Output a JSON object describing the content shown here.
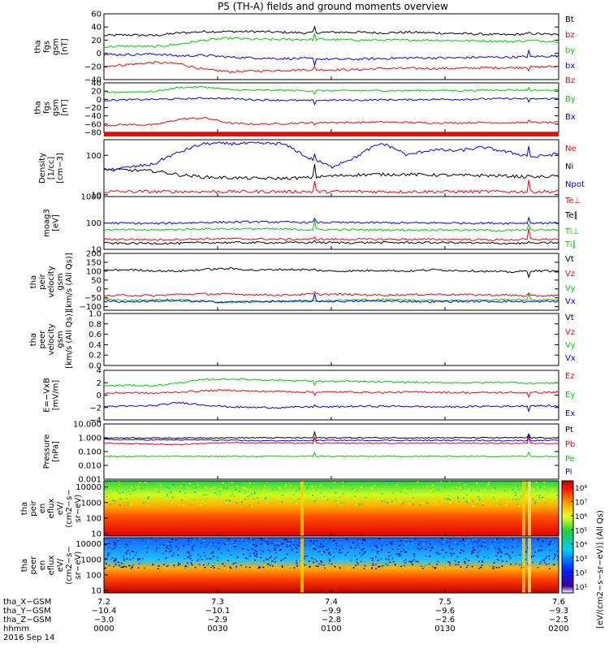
{
  "title": "P5 (TH-A) fields and ground moments overview",
  "chart_data": [
    {
      "type": "line",
      "ylabel": [
        "tha",
        "fgs",
        "gsm",
        "[nT]"
      ],
      "ylim": [
        -40,
        60
      ],
      "yticks": [
        "60",
        "40",
        "20",
        "0",
        "−20",
        "−40"
      ],
      "legend": [
        {
          "name": "Bt",
          "color": "#000000"
        },
        {
          "name": "bz",
          "color": "#ff0000"
        },
        {
          "name": "by",
          "color": "#00cc00"
        },
        {
          "name": "bx",
          "color": "#0000ff"
        }
      ],
      "series": [
        {
          "name": "Bt",
          "color": "#000000",
          "values": [
            27,
            28,
            27,
            31,
            33,
            33,
            33,
            32,
            31,
            32,
            32,
            31,
            32,
            31,
            30,
            29,
            28,
            30,
            28
          ]
        },
        {
          "name": "bz",
          "color": "#ff0000",
          "values": [
            -20,
            -17,
            -14,
            -16,
            -25,
            -28,
            -27,
            -26,
            -25,
            -25,
            -25,
            -23,
            -23,
            -23,
            -23,
            -22,
            -22,
            -21,
            -20
          ]
        },
        {
          "name": "by",
          "color": "#00cc00",
          "values": [
            10,
            11,
            10,
            14,
            20,
            23,
            21,
            21,
            21,
            21,
            20,
            20,
            20,
            20,
            19,
            19,
            18,
            19,
            18
          ]
        },
        {
          "name": "bx",
          "color": "#0000ff",
          "values": [
            -2,
            -2,
            -1,
            -4,
            -3,
            -6,
            -7,
            -8,
            -8,
            -9,
            -9,
            -8,
            -7,
            -7,
            -7,
            -6,
            -6,
            -5,
            -4
          ]
        }
      ]
    },
    {
      "type": "line",
      "ylabel": [
        "tha",
        "fgs",
        "gsm",
        "[nT]"
      ],
      "ylim": [
        -80,
        40
      ],
      "yticks": [
        "40",
        "20",
        "0",
        "−20",
        "−40",
        "−60",
        "−80"
      ],
      "legend": [
        {
          "name": "Bz",
          "color": "#ff0000"
        },
        {
          "name": "By",
          "color": "#00cc00"
        },
        {
          "name": "Bx",
          "color": "#0000ff"
        }
      ],
      "series": [
        {
          "name": "Bz",
          "color": "#ff0000",
          "values": [
            -63,
            -61,
            -62,
            -48,
            -45,
            -58,
            -60,
            -59,
            -57,
            -56,
            -56,
            -55,
            -56,
            -57,
            -57,
            -56,
            -57,
            -56,
            -56
          ]
        },
        {
          "name": "By",
          "color": "#00cc00",
          "values": [
            17,
            18,
            19,
            29,
            30,
            23,
            22,
            22,
            21,
            21,
            21,
            21,
            21,
            22,
            21,
            22,
            23,
            22,
            22
          ]
        },
        {
          "name": "Bx",
          "color": "#0000ff",
          "values": [
            -2,
            -1,
            0,
            1,
            3,
            2,
            -1,
            -2,
            -3,
            -2,
            -2,
            -1,
            -1,
            0,
            0,
            1,
            2,
            1,
            2
          ]
        }
      ]
    },
    {
      "type": "line",
      "ylog": true,
      "ylabel": [
        "Density",
        "[1/cc]",
        "[cm−3]"
      ],
      "ylim": [
        9,
        250
      ],
      "yticks": [
        "100",
        "10"
      ],
      "legend": [
        {
          "name": "Ne",
          "color": "#ff0000"
        },
        {
          "name": "Ni",
          "color": "#000000"
        },
        {
          "name": "Npot",
          "color": "#0000ff"
        }
      ],
      "series": [
        {
          "name": "Ne",
          "color": "#ff0000",
          "values": [
            12,
            12,
            12,
            12,
            12,
            12,
            12,
            12,
            12,
            12,
            12,
            12,
            12,
            12,
            12,
            12,
            12,
            12,
            12
          ]
        },
        {
          "name": "Ni",
          "color": "#000000",
          "values": [
            45,
            42,
            40,
            32,
            28,
            27,
            26,
            26,
            27,
            30,
            32,
            33,
            33,
            32,
            31,
            31,
            30,
            28,
            30
          ]
        },
        {
          "name": "Npot",
          "color": "#0000ff",
          "values": [
            40,
            50,
            60,
            120,
            200,
            200,
            200,
            200,
            90,
            50,
            90,
            200,
            100,
            140,
            130,
            160,
            120,
            90,
            110
          ]
        }
      ]
    },
    {
      "type": "line",
      "ylog": true,
      "ylabel": [
        "moag3",
        "[eV]"
      ],
      "ylim": [
        10,
        1000
      ],
      "yticks": [
        "1000",
        "100",
        "10"
      ],
      "legend": [
        {
          "name": "Te⊥",
          "color": "#ff0000"
        },
        {
          "name": "Te∥",
          "color": "#000000"
        },
        {
          "name": "Ti⊥",
          "color": "#00cc00"
        },
        {
          "name": "Ti∥",
          "color": "#00cc00"
        }
      ],
      "series": [
        {
          "name": "Ti(upper)",
          "color": "#0000ff",
          "values": [
            100,
            98,
            95,
            100,
            105,
            108,
            110,
            108,
            105,
            104,
            103,
            102,
            100,
            101,
            100,
            99,
            98,
            100,
            100
          ]
        },
        {
          "name": "Ti⊥",
          "color": "#00cc00",
          "values": [
            55,
            55,
            54,
            57,
            60,
            60,
            60,
            58,
            56,
            56,
            55,
            55,
            54,
            55,
            54,
            53,
            52,
            54,
            55
          ]
        },
        {
          "name": "Te⊥",
          "color": "#ff0000",
          "values": [
            24,
            24,
            23,
            24,
            25,
            25,
            25,
            24,
            24,
            24,
            24,
            24,
            24,
            24,
            24,
            23,
            23,
            24,
            24
          ]
        },
        {
          "name": "Te∥",
          "color": "#000000",
          "values": [
            17,
            17,
            17,
            17,
            18,
            18,
            18,
            18,
            18,
            18,
            18,
            18,
            18,
            18,
            18,
            17,
            17,
            17,
            18
          ]
        }
      ]
    },
    {
      "type": "line",
      "ylabel": [
        "tha",
        "peir",
        "velocity",
        "gsm",
        "[km/s (All Qs)]"
      ],
      "ylim": [
        -120,
        200
      ],
      "yticks": [
        "200",
        "150",
        "100",
        "50",
        "0",
        "−50",
        "−100"
      ],
      "legend": [
        {
          "name": "Vt",
          "color": "#000000"
        },
        {
          "name": "Vz",
          "color": "#ff0000"
        },
        {
          "name": "Vy",
          "color": "#00cc00"
        },
        {
          "name": "Vx",
          "color": "#0000ff"
        }
      ],
      "series": [
        {
          "name": "Vt",
          "color": "#000000",
          "values": [
            105,
            108,
            102,
            100,
            110,
            115,
            105,
            110,
            108,
            100,
            102,
            105,
            100,
            108,
            104,
            100,
            95,
            102,
            100
          ]
        },
        {
          "name": "Vz",
          "color": "#ff0000",
          "values": [
            -40,
            -35,
            -38,
            -30,
            -28,
            -30,
            -32,
            -35,
            -30,
            -30,
            -32,
            -35,
            -33,
            -30,
            -32,
            -34,
            -35,
            -40,
            -35
          ]
        },
        {
          "name": "Vy",
          "color": "#00cc00",
          "values": [
            -60,
            -65,
            -62,
            -60,
            -70,
            -75,
            -72,
            -70,
            -68,
            -65,
            -62,
            -60,
            -62,
            -65,
            -64,
            -63,
            -60,
            -62,
            -60
          ]
        },
        {
          "name": "Vx",
          "color": "#0000ff",
          "values": [
            -70,
            -72,
            -68,
            -68,
            -72,
            -74,
            -70,
            -70,
            -68,
            -70,
            -69,
            -68,
            -70,
            -72,
            -70,
            -70,
            -70,
            -72,
            -70
          ]
        }
      ]
    },
    {
      "type": "line",
      "ylabel": [
        "tha",
        "peer",
        "velocity",
        "gsm",
        "[km/s (All Qs)]"
      ],
      "ylim": [
        0,
        1
      ],
      "yticks": [
        "1.0",
        "0.8",
        "0.6",
        "0.4",
        "0.2",
        "0.0"
      ],
      "legend": [
        {
          "name": "Vt",
          "color": "#000000"
        },
        {
          "name": "Vz",
          "color": "#ff0000"
        },
        {
          "name": "Vy",
          "color": "#00cc00"
        },
        {
          "name": "Vx",
          "color": "#0000ff"
        }
      ],
      "series": []
    },
    {
      "type": "line",
      "ylabel": [
        "E=−VxB",
        "[mV/m]"
      ],
      "ylim": [
        -4,
        4
      ],
      "yticks": [
        "4",
        "2",
        "0",
        "−2",
        "−4"
      ],
      "legend": [
        {
          "name": "Ez",
          "color": "#ff0000"
        },
        {
          "name": "Ey",
          "color": "#00cc00"
        },
        {
          "name": "Ex",
          "color": "#0000ff"
        }
      ],
      "series": [
        {
          "name": "Ey",
          "color": "#00cc00",
          "values": [
            1.5,
            1.6,
            1.5,
            2.0,
            2.5,
            2.6,
            2.5,
            2.4,
            2.3,
            2.2,
            2.2,
            2.1,
            2.1,
            2.0,
            2.0,
            2.0,
            2.1,
            1.9,
            2.0
          ]
        },
        {
          "name": "Ez",
          "color": "#ff0000",
          "values": [
            0.3,
            0.4,
            0.3,
            0.5,
            0.7,
            0.8,
            0.6,
            0.6,
            0.5,
            0.5,
            0.5,
            0.4,
            0.5,
            0.5,
            0.4,
            0.4,
            0.4,
            0.4,
            0.5
          ]
        },
        {
          "name": "Ex",
          "color": "#0000ff",
          "values": [
            -1.8,
            -1.8,
            -1.7,
            -1.2,
            -1.6,
            -1.9,
            -2.0,
            -2.0,
            -1.9,
            -1.9,
            -1.8,
            -1.8,
            -1.8,
            -1.9,
            -1.9,
            -1.8,
            -1.8,
            -1.7,
            -1.8
          ]
        }
      ]
    },
    {
      "type": "line",
      "ylog": true,
      "ylabel": [
        "Pressure",
        "[nPa]"
      ],
      "ylim": [
        0.001,
        10
      ],
      "yticks": [
        "10.000",
        "1.000",
        "0.100",
        "0.010",
        "0.001"
      ],
      "legend": [
        {
          "name": "Pt",
          "color": "#000000"
        },
        {
          "name": "Pb",
          "color": "#ff0000"
        },
        {
          "name": "Pe",
          "color": "#00cc00"
        },
        {
          "name": "Pi",
          "color": "#0000ff"
        }
      ],
      "series": [
        {
          "name": "Pt",
          "color": "#000000",
          "values": [
            0.95,
            1.0,
            0.95,
            0.95,
            1.0,
            1.0,
            1.0,
            1.0,
            1.0,
            1.0,
            1.0,
            1.0,
            1.0,
            1.0,
            1.0,
            1.0,
            1.0,
            1.0,
            1.0
          ]
        },
        {
          "name": "Pi",
          "color": "#0000ff",
          "values": [
            0.75,
            0.72,
            0.7,
            0.7,
            0.7,
            0.65,
            0.62,
            0.62,
            0.63,
            0.65,
            0.65,
            0.66,
            0.65,
            0.65,
            0.64,
            0.64,
            0.63,
            0.64,
            0.64
          ]
        },
        {
          "name": "Pb",
          "color": "#ff0000",
          "values": [
            0.4,
            0.38,
            0.35,
            0.32,
            0.4,
            0.45,
            0.42,
            0.42,
            0.4,
            0.4,
            0.4,
            0.4,
            0.4,
            0.4,
            0.41,
            0.4,
            0.4,
            0.4,
            0.4
          ]
        },
        {
          "name": "Pe",
          "color": "#00cc00",
          "values": [
            0.045,
            0.045,
            0.045,
            0.045,
            0.045,
            0.045,
            0.045,
            0.045,
            0.045,
            0.045,
            0.045,
            0.045,
            0.045,
            0.045,
            0.045,
            0.045,
            0.045,
            0.045,
            0.045
          ]
        }
      ]
    },
    {
      "type": "heatmap",
      "ylabel": [
        "tha",
        "peir",
        "en",
        "eflux",
        "eV/",
        "(cm2−s−",
        "sr−eV)"
      ],
      "yticks": [
        "10000",
        "1000",
        "100",
        "10"
      ],
      "energy_levels_eV": [
        10,
        30,
        100,
        300,
        1000,
        3000,
        10000
      ],
      "log10_flux_profile": [
        7.5,
        7.9,
        8.0,
        7.6,
        6.6,
        5.7,
        4.8
      ]
    },
    {
      "type": "heatmap",
      "ylabel": [
        "tha",
        "peer",
        "en",
        "eflux",
        "eV/",
        "(cm2−s−",
        "sr−eV)"
      ],
      "yticks": [
        "10000",
        "1000",
        "100",
        "10"
      ],
      "energy_levels_eV": [
        10,
        30,
        100,
        300,
        1000,
        3000,
        10000
      ],
      "log10_flux_profile": [
        8.0,
        7.8,
        7.2,
        6.6,
        5.5,
        4.6,
        4.2
      ]
    }
  ],
  "colorbar": {
    "ticks": [
      "10⁸",
      "10⁷",
      "10⁶",
      "10⁵",
      "10⁴",
      "10³",
      "10²",
      "10¹"
    ],
    "label": "[eV/(cm2−s−sr−eV)] (All Qs)"
  },
  "x_axis": {
    "rows": [
      {
        "label": "tha_X−GSM",
        "values": [
          "7.2",
          "7.3",
          "7.4",
          "7.5",
          "7.6"
        ]
      },
      {
        "label": "tha_Y−GSM",
        "values": [
          "−10.4",
          "−10.1",
          "−9.9",
          "−9.6",
          "−9.3"
        ]
      },
      {
        "label": "tha_Z−GSM",
        "values": [
          "−3.0",
          "−2.9",
          "−2.8",
          "−2.6",
          "−2.5"
        ]
      },
      {
        "label": "hhmm",
        "values": [
          "0000",
          "0030",
          "0100",
          "0130",
          "0200"
        ]
      }
    ],
    "date": "2016 Sep 14"
  }
}
